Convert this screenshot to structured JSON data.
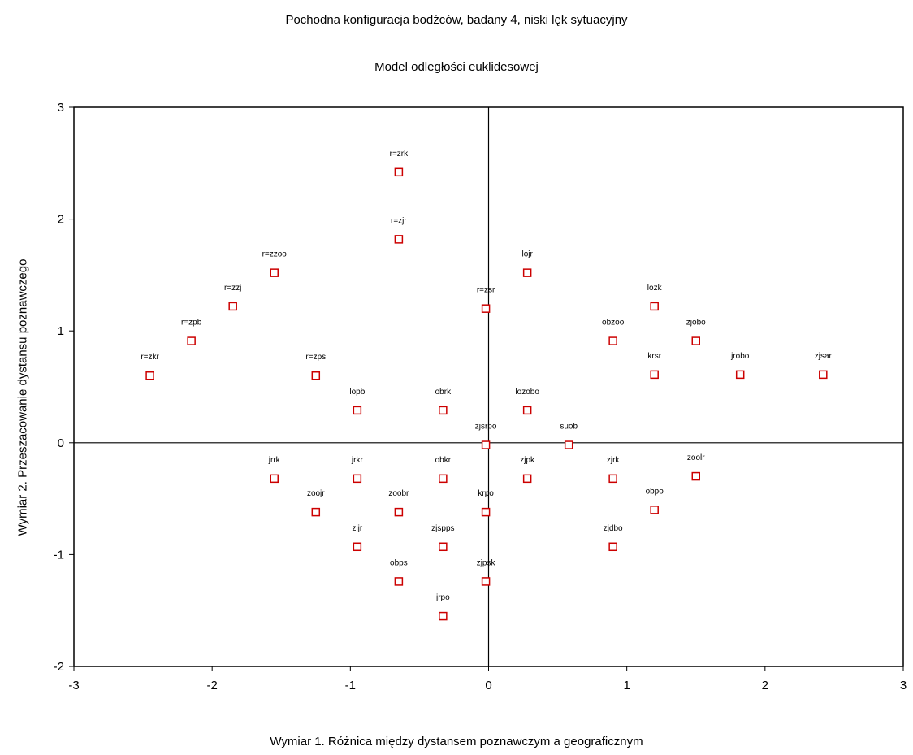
{
  "chart_data": {
    "type": "scatter",
    "title": "Pochodna konfiguracja bodźców, badany 4, niski lęk sytuacyjny",
    "subtitle": "Model odległości euklidesowej",
    "xlabel": "Wymiar 1. Różnica między dystansem poznawczym a geograficznym",
    "ylabel": "Wymiar 2. Przeszacowanie dystansu poznawczego",
    "xlim": [
      -3,
      3
    ],
    "ylim": [
      -2,
      3
    ],
    "xticks": [
      "-3",
      "-2",
      "-1",
      "0",
      "1",
      "2",
      "3"
    ],
    "yticks": [
      "-2",
      "-1",
      "0",
      "1",
      "2",
      "3"
    ],
    "grid": false,
    "marker_color": "#cc0000",
    "points": [
      {
        "label": "r=zrk",
        "x": -0.65,
        "y": 2.42
      },
      {
        "label": "r=zjr",
        "x": -0.65,
        "y": 1.82
      },
      {
        "label": "r=zzoo",
        "x": -1.55,
        "y": 1.52
      },
      {
        "label": "r=zzj",
        "x": -1.85,
        "y": 1.22
      },
      {
        "label": "r=zpb",
        "x": -2.15,
        "y": 0.91
      },
      {
        "label": "r=zkr",
        "x": -2.45,
        "y": 0.6
      },
      {
        "label": "r=zps",
        "x": -1.25,
        "y": 0.6
      },
      {
        "label": "lopb",
        "x": -0.95,
        "y": 0.29
      },
      {
        "label": "obrk",
        "x": -0.33,
        "y": 0.29
      },
      {
        "label": "lojr",
        "x": 0.28,
        "y": 1.52
      },
      {
        "label": "r=zsr",
        "x": -0.02,
        "y": 1.2
      },
      {
        "label": "lozobo",
        "x": 0.28,
        "y": 0.29
      },
      {
        "label": "zjsrpo",
        "x": -0.02,
        "y": -0.02
      },
      {
        "label": "suob",
        "x": 0.58,
        "y": -0.02
      },
      {
        "label": "lozk",
        "x": 1.2,
        "y": 1.22
      },
      {
        "label": "obzoo",
        "x": 0.9,
        "y": 0.91
      },
      {
        "label": "zjobo",
        "x": 1.5,
        "y": 0.91
      },
      {
        "label": "krsr",
        "x": 1.2,
        "y": 0.61
      },
      {
        "label": "jrobo",
        "x": 1.82,
        "y": 0.61
      },
      {
        "label": "zjsar",
        "x": 2.42,
        "y": 0.61
      },
      {
        "label": "jrrk",
        "x": -1.55,
        "y": -0.32
      },
      {
        "label": "jrkr",
        "x": -0.95,
        "y": -0.32
      },
      {
        "label": "obkr",
        "x": -0.33,
        "y": -0.32
      },
      {
        "label": "zoojr",
        "x": -1.25,
        "y": -0.62
      },
      {
        "label": "zoobr",
        "x": -0.65,
        "y": -0.62
      },
      {
        "label": "krpo",
        "x": -0.02,
        "y": -0.62
      },
      {
        "label": "zjpk",
        "x": 0.28,
        "y": -0.32
      },
      {
        "label": "zjrk",
        "x": 0.9,
        "y": -0.32
      },
      {
        "label": "zoolr",
        "x": 1.5,
        "y": -0.3
      },
      {
        "label": "obpo",
        "x": 1.2,
        "y": -0.6
      },
      {
        "label": "zjjr",
        "x": -0.95,
        "y": -0.93
      },
      {
        "label": "zjspps",
        "x": -0.33,
        "y": -0.93
      },
      {
        "label": "zjdbo",
        "x": 0.9,
        "y": -0.93
      },
      {
        "label": "obps",
        "x": -0.65,
        "y": -1.24
      },
      {
        "label": "zjpsk",
        "x": -0.02,
        "y": -1.24
      },
      {
        "label": "jrpo",
        "x": -0.33,
        "y": -1.55
      }
    ]
  }
}
